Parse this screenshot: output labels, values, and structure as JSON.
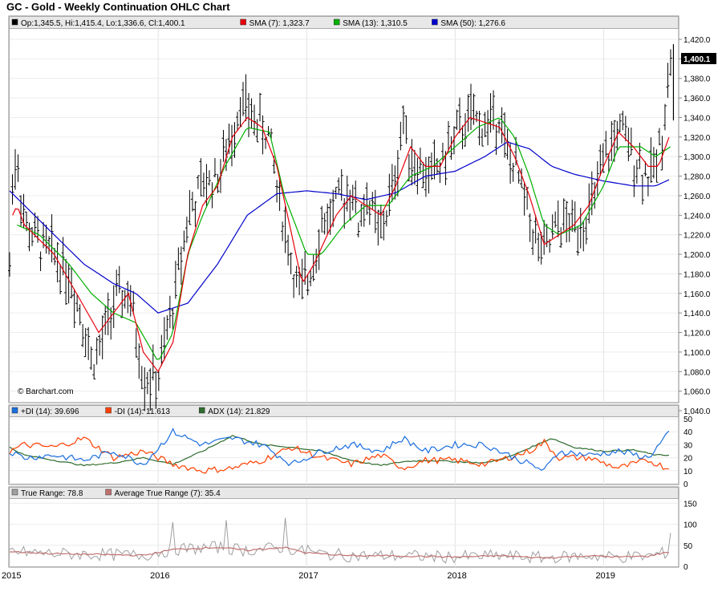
{
  "chart_data": {
    "type": "line",
    "title": "GC - Gold - Weekly Continuation OHLC Chart",
    "watermark": "© Barchart.com",
    "x_ticks": [
      "2015",
      "2016",
      "2017",
      "2018",
      "2019"
    ],
    "colors": {
      "up": "#000000",
      "sma7": "#e8000b",
      "sma13": "#00b000",
      "sma50": "#0000cc",
      "pdi": "#1a6ee0",
      "mdi": "#ff4000",
      "adx": "#2e6b2e",
      "tr": "#a0a0a0",
      "atr": "#c07070"
    },
    "price_panel": {
      "ylim": [
        1040,
        1420
      ],
      "y_ticks": [
        "1,420.0",
        "1,400.0",
        "1,380.0",
        "1,360.0",
        "1,340.0",
        "1,320.0",
        "1,300.0",
        "1,280.0",
        "1,260.0",
        "1,240.0",
        "1,220.0",
        "1,200.0",
        "1,180.0",
        "1,160.0",
        "1,140.0",
        "1,120.0",
        "1,100.0",
        "1,080.0",
        "1,060.0",
        "1,040.0"
      ],
      "last_price_label": "1,400.1",
      "legend": [
        {
          "text": "Op:1,345.5, Hi:1,415.4, Lo:1,336.6, Cl:1,400.1",
          "color": "#000000"
        },
        {
          "text": "SMA (7): 1,323.7",
          "color": "#e8000b"
        },
        {
          "text": "SMA (13): 1,310.5",
          "color": "#00b000"
        },
        {
          "text": "SMA (50): 1,276.6",
          "color": "#0000cc"
        }
      ],
      "close_anchors": [
        [
          2015.0,
          1185
        ],
        [
          2015.02,
          1280
        ],
        [
          2015.05,
          1300
        ],
        [
          2015.1,
          1230
        ],
        [
          2015.2,
          1210
        ],
        [
          2015.3,
          1200
        ],
        [
          2015.4,
          1180
        ],
        [
          2015.5,
          1130
        ],
        [
          2015.55,
          1090
        ],
        [
          2015.6,
          1100
        ],
        [
          2015.7,
          1150
        ],
        [
          2015.8,
          1160
        ],
        [
          2015.85,
          1120
        ],
        [
          2015.9,
          1075
        ],
        [
          2016.0,
          1070
        ],
        [
          2016.1,
          1150
        ],
        [
          2016.2,
          1240
        ],
        [
          2016.3,
          1270
        ],
        [
          2016.4,
          1280
        ],
        [
          2016.5,
          1320
        ],
        [
          2016.55,
          1360
        ],
        [
          2016.6,
          1345
        ],
        [
          2016.7,
          1330
        ],
        [
          2016.75,
          1320
        ],
        [
          2016.8,
          1270
        ],
        [
          2016.9,
          1190
        ],
        [
          2016.95,
          1160
        ],
        [
          2017.0,
          1170
        ],
        [
          2017.1,
          1230
        ],
        [
          2017.2,
          1250
        ],
        [
          2017.3,
          1270
        ],
        [
          2017.35,
          1230
        ],
        [
          2017.4,
          1260
        ],
        [
          2017.5,
          1220
        ],
        [
          2017.6,
          1280
        ],
        [
          2017.65,
          1340
        ],
        [
          2017.7,
          1300
        ],
        [
          2017.8,
          1280
        ],
        [
          2017.9,
          1290
        ],
        [
          2018.0,
          1320
        ],
        [
          2018.1,
          1340
        ],
        [
          2018.2,
          1330
        ],
        [
          2018.3,
          1345
        ],
        [
          2018.35,
          1300
        ],
        [
          2018.4,
          1290
        ],
        [
          2018.5,
          1240
        ],
        [
          2018.55,
          1210
        ],
        [
          2018.6,
          1200
        ],
        [
          2018.7,
          1230
        ],
        [
          2018.8,
          1230
        ],
        [
          2018.9,
          1240
        ],
        [
          2019.0,
          1290
        ],
        [
          2019.1,
          1330
        ],
        [
          2019.2,
          1300
        ],
        [
          2019.3,
          1280
        ],
        [
          2019.35,
          1290
        ],
        [
          2019.4,
          1330
        ],
        [
          2019.45,
          1400
        ]
      ],
      "sma7_anchors": [
        [
          2015.02,
          1240
        ],
        [
          2015.05,
          1250
        ],
        [
          2015.1,
          1230
        ],
        [
          2015.3,
          1200
        ],
        [
          2015.45,
          1160
        ],
        [
          2015.6,
          1120
        ],
        [
          2015.7,
          1140
        ],
        [
          2015.8,
          1160
        ],
        [
          2015.9,
          1100
        ],
        [
          2016.0,
          1080
        ],
        [
          2016.1,
          1110
        ],
        [
          2016.2,
          1200
        ],
        [
          2016.3,
          1250
        ],
        [
          2016.4,
          1270
        ],
        [
          2016.5,
          1320
        ],
        [
          2016.6,
          1340
        ],
        [
          2016.7,
          1330
        ],
        [
          2016.8,
          1290
        ],
        [
          2016.9,
          1220
        ],
        [
          2016.97,
          1170
        ],
        [
          2017.05,
          1190
        ],
        [
          2017.2,
          1240
        ],
        [
          2017.3,
          1260
        ],
        [
          2017.4,
          1250
        ],
        [
          2017.5,
          1240
        ],
        [
          2017.6,
          1270
        ],
        [
          2017.7,
          1310
        ],
        [
          2017.8,
          1290
        ],
        [
          2017.9,
          1290
        ],
        [
          2018.0,
          1320
        ],
        [
          2018.1,
          1340
        ],
        [
          2018.2,
          1335
        ],
        [
          2018.3,
          1330
        ],
        [
          2018.4,
          1300
        ],
        [
          2018.5,
          1260
        ],
        [
          2018.6,
          1210
        ],
        [
          2018.7,
          1220
        ],
        [
          2018.8,
          1230
        ],
        [
          2018.9,
          1250
        ],
        [
          2019.0,
          1290
        ],
        [
          2019.1,
          1325
        ],
        [
          2019.2,
          1310
        ],
        [
          2019.3,
          1290
        ],
        [
          2019.37,
          1290
        ],
        [
          2019.45,
          1324
        ]
      ],
      "sma13_anchors": [
        [
          2015.05,
          1230
        ],
        [
          2015.2,
          1220
        ],
        [
          2015.4,
          1190
        ],
        [
          2015.55,
          1160
        ],
        [
          2015.7,
          1140
        ],
        [
          2015.85,
          1130
        ],
        [
          2016.0,
          1090
        ],
        [
          2016.1,
          1120
        ],
        [
          2016.2,
          1200
        ],
        [
          2016.3,
          1240
        ],
        [
          2016.45,
          1290
        ],
        [
          2016.6,
          1330
        ],
        [
          2016.75,
          1325
        ],
        [
          2016.85,
          1260
        ],
        [
          2017.0,
          1200
        ],
        [
          2017.1,
          1200
        ],
        [
          2017.25,
          1230
        ],
        [
          2017.4,
          1250
        ],
        [
          2017.55,
          1250
        ],
        [
          2017.7,
          1280
        ],
        [
          2017.85,
          1290
        ],
        [
          2018.0,
          1310
        ],
        [
          2018.15,
          1330
        ],
        [
          2018.3,
          1340
        ],
        [
          2018.4,
          1320
        ],
        [
          2018.5,
          1280
        ],
        [
          2018.6,
          1230
        ],
        [
          2018.7,
          1220
        ],
        [
          2018.85,
          1230
        ],
        [
          2019.0,
          1270
        ],
        [
          2019.1,
          1310
        ],
        [
          2019.25,
          1310
        ],
        [
          2019.35,
          1300
        ],
        [
          2019.45,
          1310
        ]
      ],
      "sma50_anchors": [
        [
          2015.0,
          1265
        ],
        [
          2015.1,
          1250
        ],
        [
          2015.3,
          1220
        ],
        [
          2015.5,
          1190
        ],
        [
          2015.7,
          1170
        ],
        [
          2015.85,
          1160
        ],
        [
          2016.0,
          1140
        ],
        [
          2016.2,
          1150
        ],
        [
          2016.4,
          1190
        ],
        [
          2016.6,
          1240
        ],
        [
          2016.8,
          1262
        ],
        [
          2017.0,
          1265
        ],
        [
          2017.2,
          1262
        ],
        [
          2017.4,
          1256
        ],
        [
          2017.6,
          1263
        ],
        [
          2017.8,
          1280
        ],
        [
          2018.0,
          1285
        ],
        [
          2018.2,
          1300
        ],
        [
          2018.35,
          1315
        ],
        [
          2018.5,
          1308
        ],
        [
          2018.65,
          1290
        ],
        [
          2018.8,
          1282
        ],
        [
          2019.0,
          1275
        ],
        [
          2019.2,
          1270
        ],
        [
          2019.35,
          1270
        ],
        [
          2019.45,
          1277
        ]
      ]
    },
    "dmi_panel": {
      "ylim": [
        0,
        50
      ],
      "y_ticks": [
        "50",
        "40",
        "30",
        "20",
        "10",
        "0"
      ],
      "legend": [
        {
          "text": "+DI (14): 39.696",
          "color": "#1a6ee0"
        },
        {
          "text": "-DI (14): 11.613",
          "color": "#ff4000"
        },
        {
          "text": "ADX (14): 21.829",
          "color": "#2e6b2e"
        }
      ],
      "pdi_anchors": [
        [
          2015.0,
          25
        ],
        [
          2015.1,
          20
        ],
        [
          2015.3,
          22
        ],
        [
          2015.5,
          18
        ],
        [
          2015.7,
          25
        ],
        [
          2015.9,
          15
        ],
        [
          2016.1,
          40
        ],
        [
          2016.3,
          30
        ],
        [
          2016.5,
          35
        ],
        [
          2016.7,
          30
        ],
        [
          2016.9,
          15
        ],
        [
          2017.1,
          25
        ],
        [
          2017.3,
          30
        ],
        [
          2017.5,
          25
        ],
        [
          2017.65,
          35
        ],
        [
          2017.8,
          25
        ],
        [
          2018.0,
          30
        ],
        [
          2018.2,
          30
        ],
        [
          2018.3,
          25
        ],
        [
          2018.5,
          15
        ],
        [
          2018.6,
          10
        ],
        [
          2018.7,
          25
        ],
        [
          2018.9,
          22
        ],
        [
          2019.1,
          25
        ],
        [
          2019.3,
          20
        ],
        [
          2019.45,
          40
        ]
      ],
      "mdi_anchors": [
        [
          2015.0,
          25
        ],
        [
          2015.1,
          30
        ],
        [
          2015.3,
          28
        ],
        [
          2015.5,
          35
        ],
        [
          2015.7,
          20
        ],
        [
          2015.9,
          25
        ],
        [
          2016.1,
          15
        ],
        [
          2016.3,
          10
        ],
        [
          2016.5,
          12
        ],
        [
          2016.7,
          18
        ],
        [
          2016.9,
          28
        ],
        [
          2017.1,
          20
        ],
        [
          2017.3,
          15
        ],
        [
          2017.5,
          22
        ],
        [
          2017.65,
          12
        ],
        [
          2017.8,
          18
        ],
        [
          2018.0,
          18
        ],
        [
          2018.2,
          15
        ],
        [
          2018.3,
          18
        ],
        [
          2018.5,
          25
        ],
        [
          2018.6,
          32
        ],
        [
          2018.7,
          20
        ],
        [
          2018.9,
          20
        ],
        [
          2019.1,
          12
        ],
        [
          2019.3,
          18
        ],
        [
          2019.45,
          11
        ]
      ],
      "adx_anchors": [
        [
          2015.0,
          28
        ],
        [
          2015.1,
          22
        ],
        [
          2015.3,
          18
        ],
        [
          2015.5,
          14
        ],
        [
          2015.7,
          16
        ],
        [
          2015.9,
          20
        ],
        [
          2016.1,
          15
        ],
        [
          2016.3,
          25
        ],
        [
          2016.5,
          37
        ],
        [
          2016.7,
          30
        ],
        [
          2016.9,
          28
        ],
        [
          2017.1,
          25
        ],
        [
          2017.3,
          18
        ],
        [
          2017.5,
          14
        ],
        [
          2017.65,
          17
        ],
        [
          2017.8,
          18
        ],
        [
          2018.0,
          17
        ],
        [
          2018.2,
          16
        ],
        [
          2018.35,
          20
        ],
        [
          2018.55,
          30
        ],
        [
          2018.65,
          35
        ],
        [
          2018.8,
          28
        ],
        [
          2019.0,
          25
        ],
        [
          2019.2,
          26
        ],
        [
          2019.35,
          22
        ],
        [
          2019.45,
          22
        ]
      ]
    },
    "tr_panel": {
      "ylim": [
        0,
        160
      ],
      "y_ticks": [
        "150",
        "100",
        "50",
        "0"
      ],
      "legend": [
        {
          "text": "True Range: 78.8",
          "color": "#a0a0a0"
        },
        {
          "text": "Average True Range (7): 35.4",
          "color": "#c07070"
        }
      ],
      "tr_spikes": [
        [
          2016.1,
          105
        ],
        [
          2016.45,
          110
        ],
        [
          2016.85,
          115
        ],
        [
          2017.0,
          50
        ],
        [
          2019.45,
          79
        ]
      ],
      "atr_anchors": [
        [
          2015.0,
          35
        ],
        [
          2015.3,
          30
        ],
        [
          2015.6,
          28
        ],
        [
          2015.9,
          26
        ],
        [
          2016.1,
          40
        ],
        [
          2016.4,
          45
        ],
        [
          2016.6,
          38
        ],
        [
          2016.85,
          45
        ],
        [
          2017.0,
          32
        ],
        [
          2017.3,
          25
        ],
        [
          2017.6,
          25
        ],
        [
          2018.0,
          22
        ],
        [
          2018.3,
          25
        ],
        [
          2018.6,
          20
        ],
        [
          2018.9,
          25
        ],
        [
          2019.1,
          22
        ],
        [
          2019.3,
          24
        ],
        [
          2019.45,
          35
        ]
      ]
    }
  }
}
